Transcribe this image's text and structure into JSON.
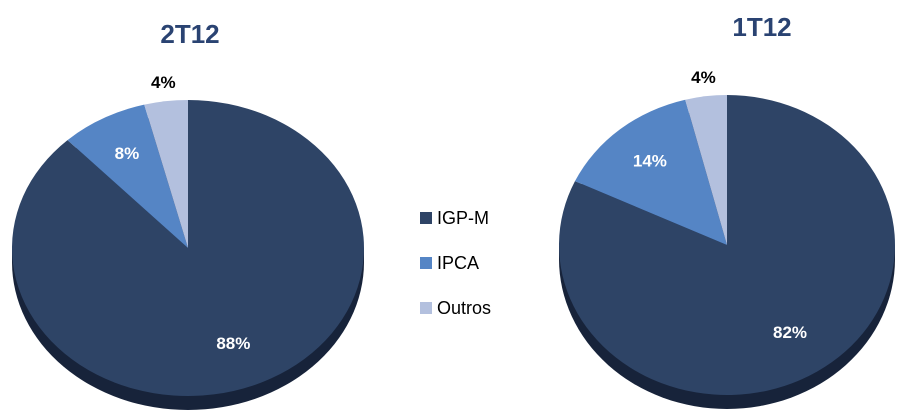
{
  "chart_data": [
    {
      "type": "pie",
      "title": "2T12",
      "categories": [
        "IGP-M",
        "IPCA",
        "Outros"
      ],
      "values": [
        88,
        8,
        4
      ],
      "value_labels": [
        "88%",
        "8%",
        "4%"
      ],
      "colors": [
        "#2e4466",
        "#5585c5",
        "#b3c0de"
      ]
    },
    {
      "type": "pie",
      "title": "1T12",
      "categories": [
        "IGP-M",
        "IPCA",
        "Outros"
      ],
      "values": [
        82,
        14,
        4
      ],
      "value_labels": [
        "82%",
        "14%",
        "4%"
      ],
      "colors": [
        "#2e4466",
        "#5585c5",
        "#b3c0de"
      ]
    }
  ]
}
